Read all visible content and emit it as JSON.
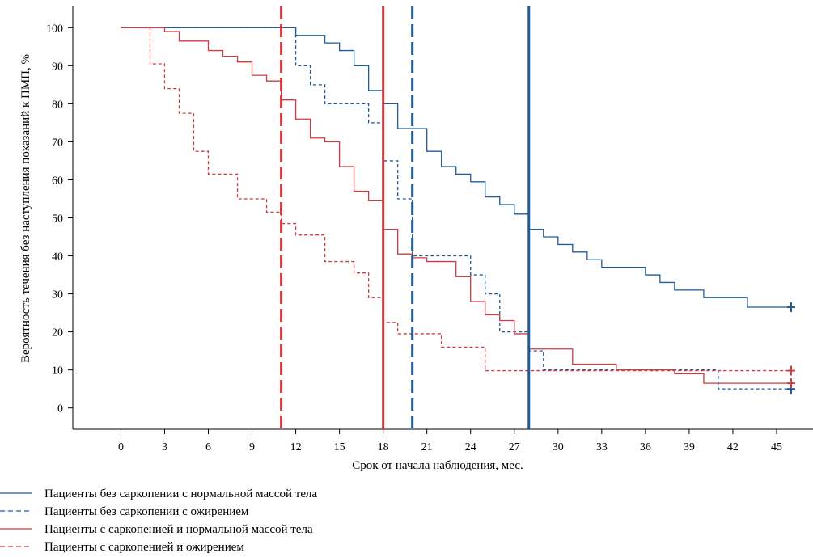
{
  "chart_data": {
    "type": "line",
    "xlabel": "Срок от начала наблюдения, мес.",
    "ylabel": "Вероятность течения без наступления показаний к ПМП, %",
    "xlim": [
      -3.3,
      47.5
    ],
    "ylim": [
      -5.6,
      105.6
    ],
    "x_ticks": [
      0,
      3,
      6,
      9,
      12,
      15,
      18,
      21,
      24,
      27,
      30,
      33,
      36,
      39,
      42,
      45
    ],
    "y_ticks": [
      0,
      10,
      20,
      30,
      40,
      50,
      60,
      70,
      80,
      90,
      100
    ],
    "grid": false,
    "legend_position": "bottom-left",
    "series": [
      {
        "name": "Пациенты без саркопении с нормальной массой тела",
        "color": "#1f5c99",
        "dash": "solid",
        "censor": [
          46,
          26.5
        ],
        "median": 28,
        "steps": [
          [
            0,
            100
          ],
          [
            12,
            98
          ],
          [
            14,
            96
          ],
          [
            15,
            94
          ],
          [
            16,
            90
          ],
          [
            17,
            83.5
          ],
          [
            18,
            80
          ],
          [
            19,
            73.5
          ],
          [
            21,
            67.5
          ],
          [
            22,
            63.5
          ],
          [
            23,
            61.5
          ],
          [
            24,
            59.5
          ],
          [
            25,
            55.5
          ],
          [
            26,
            53.5
          ],
          [
            27,
            51
          ],
          [
            28,
            47
          ],
          [
            29,
            45
          ],
          [
            30,
            43
          ],
          [
            31,
            41
          ],
          [
            32,
            39
          ],
          [
            33,
            37
          ],
          [
            36,
            35
          ],
          [
            37,
            33
          ],
          [
            38,
            31
          ],
          [
            40,
            29
          ],
          [
            43,
            26.5
          ],
          [
            46,
            26.5
          ]
        ]
      },
      {
        "name": "Пациенты без саркопении с ожирением",
        "color": "#1f5c99",
        "dash": "dashed",
        "censor": [
          46,
          5
        ],
        "median": 20,
        "steps": [
          [
            0,
            100
          ],
          [
            12,
            90
          ],
          [
            13,
            85
          ],
          [
            14,
            80
          ],
          [
            17,
            75
          ],
          [
            18,
            65
          ],
          [
            19,
            55
          ],
          [
            20,
            40
          ],
          [
            24,
            35
          ],
          [
            25,
            30
          ],
          [
            26,
            20
          ],
          [
            28,
            15
          ],
          [
            29,
            10
          ],
          [
            41,
            5
          ],
          [
            46,
            5
          ]
        ]
      },
      {
        "name": "Пациенты с саркопенией и нормальной массой тела",
        "color": "#d13a3f",
        "dash": "solid",
        "censor": [
          46,
          6.5
        ],
        "median": 18,
        "steps": [
          [
            0,
            100
          ],
          [
            3,
            99
          ],
          [
            4,
            96.5
          ],
          [
            6,
            94
          ],
          [
            7,
            92.5
          ],
          [
            8,
            91
          ],
          [
            9,
            87.5
          ],
          [
            10,
            86
          ],
          [
            11,
            81
          ],
          [
            12,
            76
          ],
          [
            13,
            71
          ],
          [
            14,
            70
          ],
          [
            15,
            63.5
          ],
          [
            16,
            57
          ],
          [
            17,
            54.5
          ],
          [
            18,
            47
          ],
          [
            19,
            40.5
          ],
          [
            20,
            39.5
          ],
          [
            21,
            38.5
          ],
          [
            23,
            34.5
          ],
          [
            24,
            28
          ],
          [
            25,
            24.5
          ],
          [
            26,
            23
          ],
          [
            27,
            19.5
          ],
          [
            28,
            15.5
          ],
          [
            31,
            11.5
          ],
          [
            34,
            10
          ],
          [
            38,
            9
          ],
          [
            40,
            6.5
          ],
          [
            46,
            6.5
          ]
        ]
      },
      {
        "name": "Пациенты с саркопенией и ожирением",
        "color": "#d13a3f",
        "dash": "dashed",
        "censor": [
          46,
          9.8
        ],
        "median": 11,
        "steps": [
          [
            0,
            100
          ],
          [
            2,
            90.5
          ],
          [
            3,
            84
          ],
          [
            4,
            77.5
          ],
          [
            5,
            67.5
          ],
          [
            6,
            61.5
          ],
          [
            8,
            55
          ],
          [
            10,
            51.5
          ],
          [
            11,
            48.5
          ],
          [
            12,
            45.5
          ],
          [
            14,
            38.5
          ],
          [
            16,
            35.5
          ],
          [
            17,
            29
          ],
          [
            18,
            22.5
          ],
          [
            19,
            19.5
          ],
          [
            22,
            16
          ],
          [
            25,
            9.8
          ],
          [
            46,
            9.8
          ]
        ]
      }
    ]
  }
}
